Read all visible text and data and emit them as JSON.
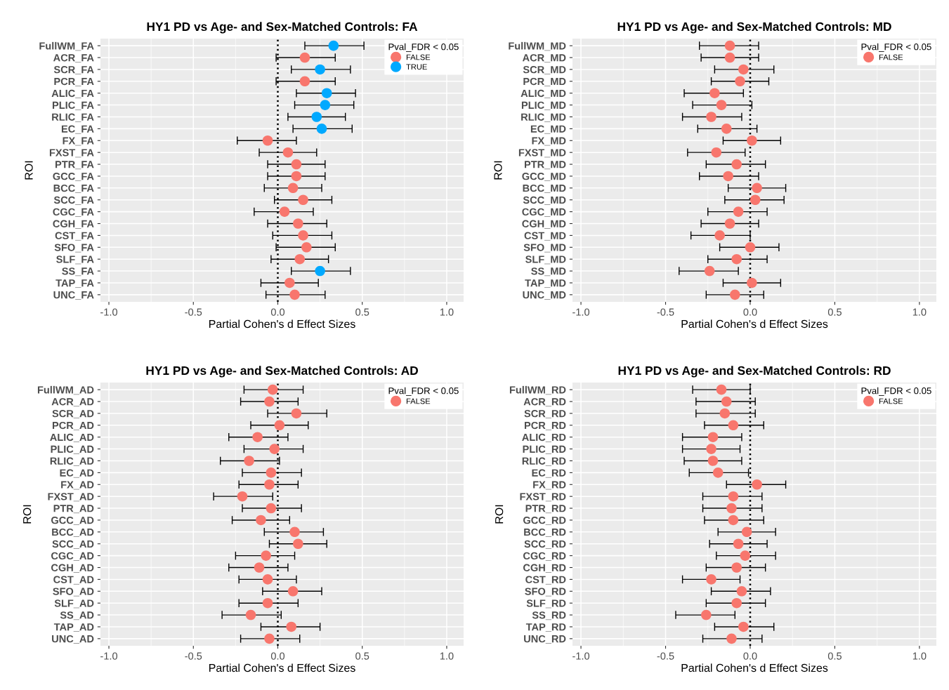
{
  "chart_data": [
    {
      "type": "scatter",
      "orientation": "horizontal",
      "title": "HY1 PD vs Age- and Sex-Matched Controls: FA",
      "xlabel": "Partial Cohen's d Effect Sizes",
      "ylabel": "ROI",
      "legend_title": "Pval_FDR < 0.05",
      "legend": "top right",
      "grid": true,
      "marker": "circle",
      "categories": [
        "FullWM_FA",
        "ACR_FA",
        "SCR_FA",
        "PCR_FA",
        "ALIC_FA",
        "PLIC_FA",
        "RLIC_FA",
        "EC_FA",
        "FX_FA",
        "FXST_FA",
        "PTR_FA",
        "GCC_FA",
        "BCC_FA",
        "SCC_FA",
        "CGC_FA",
        "CGH_FA",
        "CST_FA",
        "SFO_FA",
        "SLF_FA",
        "SS_FA",
        "TAP_FA",
        "UNC_FA"
      ],
      "xlim": [
        -1.05,
        1.1
      ],
      "xticks": [
        {
          "value": -1,
          "label": "-1.0"
        },
        {
          "value": -0.5,
          "label": "-0.5"
        },
        {
          "value": 0,
          "label": "0.0"
        },
        {
          "value": 0.5,
          "label": "0.5"
        },
        {
          "value": 1,
          "label": "1.0"
        }
      ],
      "ref_lines": [
        {
          "axis": "x",
          "value": 0,
          "label": null,
          "color": "#000000",
          "line_style": "dotted"
        }
      ],
      "series": [
        {
          "name": "FALSE",
          "color": "#f8766d",
          "values": [
            null,
            0.16,
            null,
            0.16,
            null,
            null,
            null,
            null,
            -0.06,
            0.06,
            0.11,
            0.11,
            0.09,
            0.15,
            0.04,
            0.12,
            0.15,
            0.17,
            0.13,
            null,
            0.07,
            0.1
          ],
          "errors": [
            null,
            [
              -0.01,
              0.34
            ],
            null,
            [
              -0.01,
              0.34
            ],
            null,
            null,
            null,
            null,
            [
              -0.24,
              0.11
            ],
            [
              -0.11,
              0.23
            ],
            [
              -0.06,
              0.28
            ],
            [
              -0.06,
              0.28
            ],
            [
              -0.08,
              0.26
            ],
            [
              -0.02,
              0.32
            ],
            [
              -0.14,
              0.21
            ],
            [
              -0.06,
              0.29
            ],
            [
              -0.03,
              0.32
            ],
            [
              -0.01,
              0.34
            ],
            [
              -0.04,
              0.3
            ],
            null,
            [
              -0.1,
              0.24
            ],
            [
              -0.07,
              0.28
            ]
          ]
        },
        {
          "name": "TRUE",
          "color": "#00a9ff",
          "values": [
            0.33,
            null,
            0.25,
            null,
            0.29,
            0.28,
            0.23,
            0.26,
            null,
            null,
            null,
            null,
            null,
            null,
            null,
            null,
            null,
            null,
            null,
            0.25,
            null,
            null
          ],
          "errors": [
            [
              0.16,
              0.51
            ],
            null,
            [
              0.08,
              0.43
            ],
            null,
            [
              0.11,
              0.46
            ],
            [
              0.1,
              0.45
            ],
            [
              0.06,
              0.4
            ],
            [
              0.09,
              0.44
            ],
            null,
            null,
            null,
            null,
            null,
            null,
            null,
            null,
            null,
            null,
            null,
            [
              0.08,
              0.43
            ],
            null,
            null
          ]
        }
      ]
    },
    {
      "type": "scatter",
      "orientation": "horizontal",
      "title": "HY1 PD vs Age- and Sex-Matched Controls: MD",
      "xlabel": "Partial Cohen's d Effect Sizes",
      "ylabel": "ROI",
      "legend_title": "Pval_FDR < 0.05",
      "legend": "top right",
      "grid": true,
      "marker": "circle",
      "categories": [
        "FullWM_MD",
        "ACR_MD",
        "SCR_MD",
        "PCR_MD",
        "ALIC_MD",
        "PLIC_MD",
        "RLIC_MD",
        "EC_MD",
        "FX_MD",
        "FXST_MD",
        "PTR_MD",
        "GCC_MD",
        "BCC_MD",
        "SCC_MD",
        "CGC_MD",
        "CGH_MD",
        "CST_MD",
        "SFO_MD",
        "SLF_MD",
        "SS_MD",
        "TAP_MD",
        "UNC_MD"
      ],
      "xlim": [
        -1.05,
        1.1
      ],
      "xticks": [
        {
          "value": -1,
          "label": "-1.0"
        },
        {
          "value": -0.5,
          "label": "-0.5"
        },
        {
          "value": 0,
          "label": "0.0"
        },
        {
          "value": 0.5,
          "label": "0.5"
        },
        {
          "value": 1,
          "label": "1.0"
        }
      ],
      "ref_lines": [
        {
          "axis": "x",
          "value": 0,
          "label": null,
          "color": "#000000",
          "line_style": "dotted"
        }
      ],
      "series": [
        {
          "name": "FALSE",
          "color": "#f8766d",
          "values": [
            -0.12,
            -0.12,
            -0.04,
            -0.06,
            -0.21,
            -0.17,
            -0.23,
            -0.14,
            0.01,
            -0.2,
            -0.08,
            -0.13,
            0.04,
            0.03,
            -0.07,
            -0.12,
            -0.18,
            0.0,
            -0.08,
            -0.24,
            0.01,
            -0.09
          ],
          "errors": [
            [
              -0.3,
              0.05
            ],
            [
              -0.29,
              0.05
            ],
            [
              -0.21,
              0.14
            ],
            [
              -0.23,
              0.11
            ],
            [
              -0.39,
              -0.04
            ],
            [
              -0.34,
              0.01
            ],
            [
              -0.4,
              -0.05
            ],
            [
              -0.31,
              0.04
            ],
            [
              -0.16,
              0.18
            ],
            [
              -0.37,
              -0.03
            ],
            [
              -0.26,
              0.09
            ],
            [
              -0.3,
              0.05
            ],
            [
              -0.13,
              0.21
            ],
            [
              -0.15,
              0.2
            ],
            [
              -0.25,
              0.1
            ],
            [
              -0.29,
              0.05
            ],
            [
              -0.35,
              0.0
            ],
            [
              -0.18,
              0.17
            ],
            [
              -0.25,
              0.1
            ],
            [
              -0.42,
              -0.07
            ],
            [
              -0.16,
              0.18
            ],
            [
              -0.26,
              0.08
            ]
          ]
        }
      ]
    },
    {
      "type": "scatter",
      "orientation": "horizontal",
      "title": "HY1 PD vs Age- and Sex-Matched Controls: AD",
      "xlabel": "Partial Cohen's d Effect Sizes",
      "ylabel": "ROI",
      "legend_title": "Pval_FDR < 0.05",
      "legend": "top right",
      "grid": true,
      "marker": "circle",
      "categories": [
        "FullWM_AD",
        "ACR_AD",
        "SCR_AD",
        "PCR_AD",
        "ALIC_AD",
        "PLIC_AD",
        "RLIC_AD",
        "EC_AD",
        "FX_AD",
        "FXST_AD",
        "PTR_AD",
        "GCC_AD",
        "BCC_AD",
        "SCC_AD",
        "CGC_AD",
        "CGH_AD",
        "CST_AD",
        "SFO_AD",
        "SLF_AD",
        "SS_AD",
        "TAP_AD",
        "UNC_AD"
      ],
      "xlim": [
        -1.05,
        1.1
      ],
      "xticks": [
        {
          "value": -1,
          "label": "-1.0"
        },
        {
          "value": -0.5,
          "label": "-0.5"
        },
        {
          "value": 0,
          "label": "0.0"
        },
        {
          "value": 0.5,
          "label": "0.5"
        },
        {
          "value": 1,
          "label": "1.0"
        }
      ],
      "ref_lines": [
        {
          "axis": "x",
          "value": 0,
          "label": null,
          "color": "#000000",
          "line_style": "dotted"
        }
      ],
      "series": [
        {
          "name": "FALSE",
          "color": "#f8766d",
          "values": [
            -0.03,
            -0.05,
            0.11,
            0.01,
            -0.12,
            -0.02,
            -0.17,
            -0.04,
            -0.05,
            -0.21,
            -0.04,
            -0.1,
            0.1,
            0.12,
            -0.07,
            -0.11,
            -0.06,
            0.09,
            -0.06,
            -0.16,
            0.08,
            -0.05
          ],
          "errors": [
            [
              -0.2,
              0.15
            ],
            [
              -0.22,
              0.12
            ],
            [
              -0.06,
              0.29
            ],
            [
              -0.16,
              0.18
            ],
            [
              -0.29,
              0.06
            ],
            [
              -0.2,
              0.15
            ],
            [
              -0.34,
              0.01
            ],
            [
              -0.21,
              0.14
            ],
            [
              -0.23,
              0.12
            ],
            [
              -0.38,
              -0.03
            ],
            [
              -0.21,
              0.14
            ],
            [
              -0.27,
              0.07
            ],
            [
              -0.08,
              0.27
            ],
            [
              -0.05,
              0.29
            ],
            [
              -0.25,
              0.1
            ],
            [
              -0.29,
              0.06
            ],
            [
              -0.23,
              0.11
            ],
            [
              -0.09,
              0.26
            ],
            [
              -0.23,
              0.12
            ],
            [
              -0.33,
              0.02
            ],
            [
              -0.1,
              0.25
            ],
            [
              -0.22,
              0.13
            ]
          ]
        }
      ]
    },
    {
      "type": "scatter",
      "orientation": "horizontal",
      "title": "HY1 PD vs Age- and Sex-Matched Controls: RD",
      "xlabel": "Partial Cohen's d Effect Sizes",
      "ylabel": "ROI",
      "legend_title": "Pval_FDR < 0.05",
      "legend": "top right",
      "grid": true,
      "marker": "circle",
      "categories": [
        "FullWM_RD",
        "ACR_RD",
        "SCR_RD",
        "PCR_RD",
        "ALIC_RD",
        "PLIC_RD",
        "RLIC_RD",
        "EC_RD",
        "FX_RD",
        "FXST_RD",
        "PTR_RD",
        "GCC_RD",
        "BCC_RD",
        "SCC_RD",
        "CGC_RD",
        "CGH_RD",
        "CST_RD",
        "SFO_RD",
        "SLF_RD",
        "SS_RD",
        "TAP_RD",
        "UNC_RD"
      ],
      "xlim": [
        -1.05,
        1.1
      ],
      "xticks": [
        {
          "value": -1,
          "label": "-1.0"
        },
        {
          "value": -0.5,
          "label": "-0.5"
        },
        {
          "value": 0,
          "label": "0.0"
        },
        {
          "value": 0.5,
          "label": "0.5"
        },
        {
          "value": 1,
          "label": "1.0"
        }
      ],
      "ref_lines": [
        {
          "axis": "x",
          "value": 0,
          "label": null,
          "color": "#000000",
          "line_style": "dotted"
        }
      ],
      "series": [
        {
          "name": "FALSE",
          "color": "#f8766d",
          "values": [
            -0.17,
            -0.14,
            -0.15,
            -0.1,
            -0.22,
            -0.23,
            -0.22,
            -0.19,
            0.04,
            -0.1,
            -0.11,
            -0.1,
            -0.02,
            -0.07,
            -0.03,
            -0.08,
            -0.23,
            -0.05,
            -0.08,
            -0.26,
            -0.04,
            -0.11
          ],
          "errors": [
            [
              -0.34,
              0.0
            ],
            [
              -0.32,
              0.03
            ],
            [
              -0.32,
              0.03
            ],
            [
              -0.27,
              0.08
            ],
            [
              -0.4,
              -0.05
            ],
            [
              -0.4,
              -0.06
            ],
            [
              -0.39,
              -0.05
            ],
            [
              -0.36,
              -0.01
            ],
            [
              -0.14,
              0.21
            ],
            [
              -0.28,
              0.07
            ],
            [
              -0.28,
              0.07
            ],
            [
              -0.27,
              0.08
            ],
            [
              -0.19,
              0.15
            ],
            [
              -0.24,
              0.1
            ],
            [
              -0.2,
              0.15
            ],
            [
              -0.26,
              0.09
            ],
            [
              -0.4,
              -0.06
            ],
            [
              -0.23,
              0.12
            ],
            [
              -0.26,
              0.09
            ],
            [
              -0.44,
              -0.09
            ],
            [
              -0.21,
              0.14
            ],
            [
              -0.28,
              0.07
            ]
          ]
        }
      ]
    }
  ]
}
